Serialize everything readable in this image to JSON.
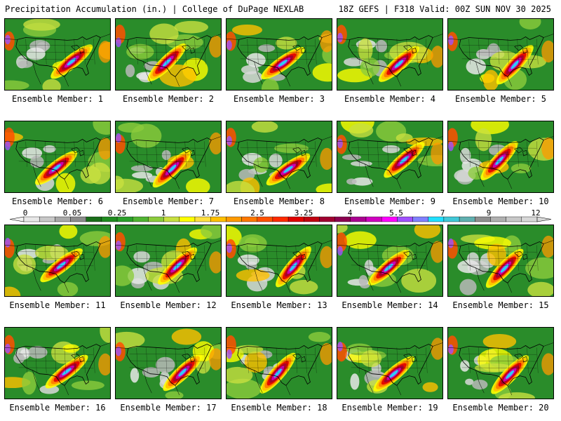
{
  "header": {
    "title_left": "Precipitation Accumulation (in.) | College of DuPage NEXLAB",
    "title_right": "18Z GEFS | F318 Valid: 00Z SUN NOV 30 2025"
  },
  "colorbar": {
    "labels": [
      "0",
      "0.05",
      "0.25",
      "1",
      "1.75",
      "2.5",
      "3.25",
      "4",
      "5.5",
      "7",
      "9",
      "12"
    ],
    "colors": [
      "#e8e8e8",
      "#c8c8c8",
      "#a8a8a8",
      "#8c8c8c",
      "#1a6e1a",
      "#208c20",
      "#2aa02a",
      "#50b432",
      "#8ccc3c",
      "#c8e040",
      "#ffff00",
      "#ffe040",
      "#ffc000",
      "#ff9a00",
      "#ff7800",
      "#ff5000",
      "#ff2a00",
      "#e00000",
      "#c00010",
      "#a00030",
      "#8c0050",
      "#aa0090",
      "#d000c0",
      "#ff00ff",
      "#a050ff",
      "#8080ff",
      "#20e0ff",
      "#40c8d8",
      "#60b0b0",
      "#909090",
      "#b0b0b0",
      "#c8c8c8",
      "#d8d8d8"
    ]
  },
  "panels": [
    {
      "label": "Ensemble Member: 1"
    },
    {
      "label": "Ensemble Member: 2"
    },
    {
      "label": "Ensemble Member: 3"
    },
    {
      "label": "Ensemble Member: 4"
    },
    {
      "label": "Ensemble Member: 5"
    },
    {
      "label": "Ensemble Member: 6"
    },
    {
      "label": "Ensemble Member: 7"
    },
    {
      "label": "Ensemble Member: 8"
    },
    {
      "label": "Ensemble Member: 9"
    },
    {
      "label": "Ensemble Member: 10"
    },
    {
      "label": "Ensemble Member: 11"
    },
    {
      "label": "Ensemble Member: 12"
    },
    {
      "label": "Ensemble Member: 13"
    },
    {
      "label": "Ensemble Member: 14"
    },
    {
      "label": "Ensemble Member: 15"
    },
    {
      "label": "Ensemble Member: 16"
    },
    {
      "label": "Ensemble Member: 17"
    },
    {
      "label": "Ensemble Member: 18"
    },
    {
      "label": "Ensemble Member: 19"
    },
    {
      "label": "Ensemble Member: 20"
    }
  ]
}
